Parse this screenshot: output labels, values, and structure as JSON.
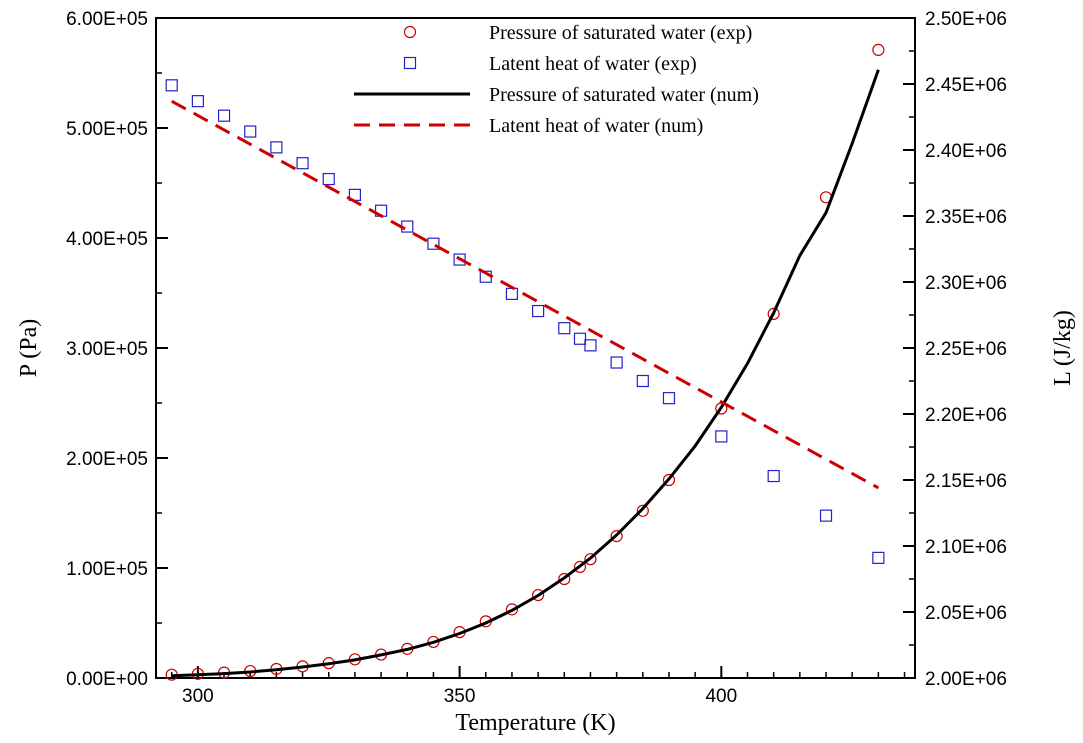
{
  "chart_data": {
    "type": "line",
    "x_axis": {
      "label": "Temperature (K)",
      "range": [
        292,
        437
      ],
      "ticks": [
        300,
        350,
        400
      ],
      "tick_labels": [
        "300",
        "350",
        "400"
      ]
    },
    "y_axis_left": {
      "label": "P (Pa)",
      "range": [
        0,
        600000
      ],
      "ticks": [
        0,
        100000,
        200000,
        300000,
        400000,
        500000,
        600000
      ],
      "tick_labels": [
        "0.00E+00",
        "1.00E+05",
        "2.00E+05",
        "3.00E+05",
        "4.00E+05",
        "5.00E+05",
        "6.00E+05"
      ]
    },
    "y_axis_right": {
      "label": "L (J/kg)",
      "range": [
        2000000,
        2500000
      ],
      "ticks": [
        2000000,
        2050000,
        2100000,
        2150000,
        2200000,
        2250000,
        2300000,
        2350000,
        2400000,
        2450000,
        2500000
      ],
      "tick_labels": [
        "2.00E+06",
        "2.05E+06",
        "2.10E+06",
        "2.15E+06",
        "2.20E+06",
        "2.25E+06",
        "2.30E+06",
        "2.35E+06",
        "2.40E+06",
        "2.45E+06",
        "2.50E+06"
      ]
    },
    "legend_position": "top-right",
    "grid": false,
    "series": [
      {
        "name": "Pressure of saturated water (exp)",
        "kind": "scatter",
        "marker": "circle",
        "color": "#cc0000",
        "axis": "left",
        "x": [
          295,
          300,
          305,
          310,
          315,
          320,
          325,
          330,
          335,
          340,
          345,
          350,
          355,
          360,
          365,
          370,
          373,
          375,
          380,
          385,
          390,
          400,
          410,
          420,
          430
        ],
        "y": [
          3000,
          3800,
          4900,
          6300,
          8200,
          10600,
          13500,
          17000,
          21300,
          26500,
          32800,
          41700,
          51500,
          62400,
          75400,
          90000,
          101000,
          108000,
          129000,
          152000,
          180000,
          245000,
          331000,
          437000,
          571000
        ]
      },
      {
        "name": "Latent heat of water (exp)",
        "kind": "scatter",
        "marker": "square",
        "color": "#2222cc",
        "axis": "right",
        "x": [
          295,
          300,
          305,
          310,
          315,
          320,
          325,
          330,
          335,
          340,
          345,
          350,
          355,
          360,
          365,
          370,
          373,
          375,
          380,
          385,
          390,
          400,
          410,
          420,
          430
        ],
        "y": [
          2449000,
          2437000,
          2426000,
          2414000,
          2402000,
          2390000,
          2378000,
          2366000,
          2354000,
          2342000,
          2329000,
          2317000,
          2304000,
          2291000,
          2278000,
          2265000,
          2257000,
          2252000,
          2239000,
          2225000,
          2212000,
          2183000,
          2153000,
          2123000,
          2091000
        ]
      },
      {
        "name": "Pressure of saturated water (num)",
        "kind": "line",
        "style": "solid",
        "color": "#000000",
        "axis": "left",
        "x": [
          295,
          300,
          305,
          310,
          315,
          320,
          325,
          330,
          335,
          340,
          345,
          350,
          355,
          360,
          365,
          370,
          375,
          380,
          385,
          390,
          395,
          400,
          405,
          410,
          415,
          420,
          425,
          430
        ],
        "y": [
          2000,
          3000,
          4000,
          5500,
          7500,
          10000,
          13000,
          16500,
          21000,
          26000,
          32500,
          40500,
          50000,
          61500,
          75000,
          91000,
          109000,
          130000,
          154000,
          181000,
          211000,
          246000,
          286000,
          332000,
          384000,
          423000,
          486000,
          553000
        ]
      },
      {
        "name": "Latent heat of water (num)",
        "kind": "line",
        "style": "dashed",
        "color": "#cc0000",
        "axis": "right",
        "x": [
          295,
          430
        ],
        "y": [
          2437000,
          2144000
        ]
      }
    ]
  }
}
